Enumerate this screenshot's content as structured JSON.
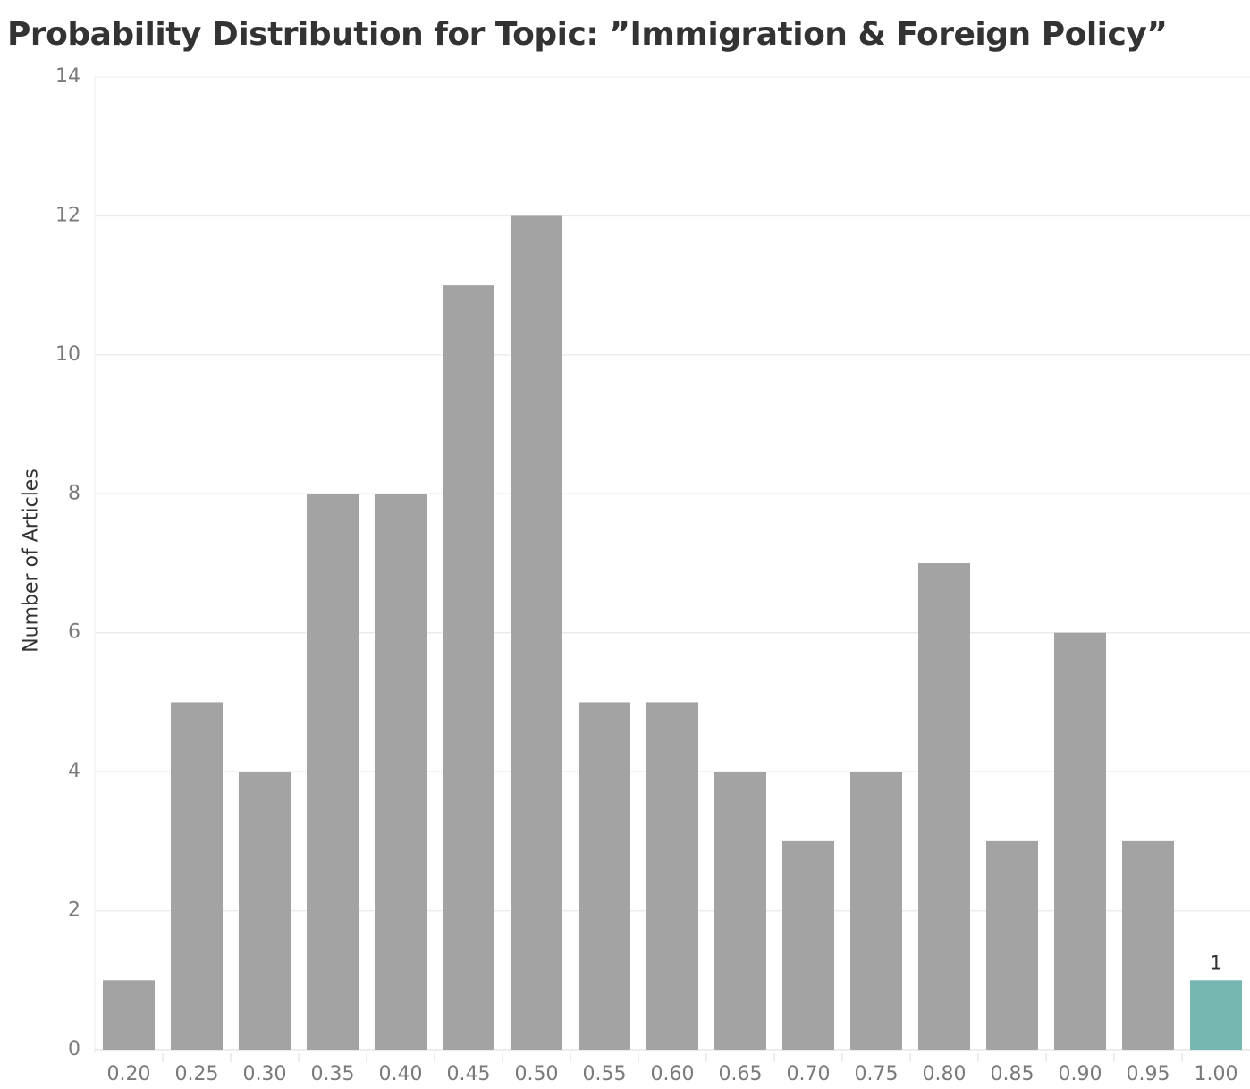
{
  "title": "Probability Distribution for Topic: ”Immigration & Foreign Policy”",
  "colors": {
    "bar": "#a3a3a3",
    "highlight": "#76b7b2",
    "grid": "#ebebeb",
    "axis_text": "#7a7a7a",
    "title_text": "#333333"
  },
  "chart_data": {
    "type": "bar",
    "title": "Probability Distribution for Topic: ”Immigration & Foreign Policy”",
    "xlabel": "",
    "ylabel": "Number of Articles",
    "categories": [
      "0.20",
      "0.25",
      "0.30",
      "0.35",
      "0.40",
      "0.45",
      "0.50",
      "0.55",
      "0.60",
      "0.65",
      "0.70",
      "0.75",
      "0.80",
      "0.85",
      "0.90",
      "0.95",
      "1.00"
    ],
    "values": [
      1,
      5,
      4,
      8,
      8,
      11,
      12,
      5,
      5,
      4,
      3,
      4,
      7,
      3,
      6,
      3,
      1
    ],
    "highlighted_category": "1.00",
    "data_labels": [
      {
        "category": "1.00",
        "text": "1"
      }
    ],
    "ylim": [
      0,
      14
    ],
    "yticks": [
      0,
      2,
      4,
      6,
      8,
      10,
      12,
      14
    ],
    "grid": true,
    "legend": "none"
  }
}
